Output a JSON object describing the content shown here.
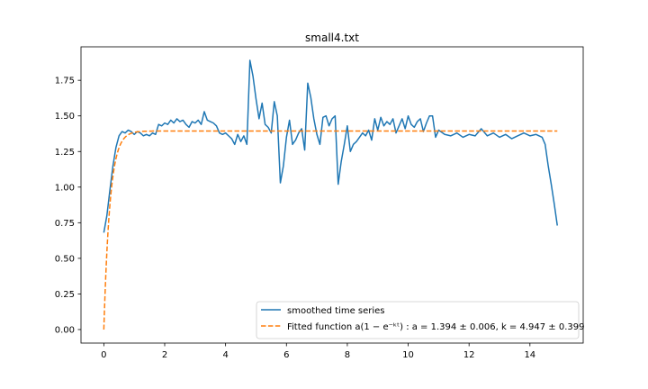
{
  "chart_data": {
    "type": "line",
    "title": "small4.txt",
    "xlabel": "",
    "ylabel": "",
    "xlim": [
      -0.75,
      15.75
    ],
    "ylim": [
      -0.095,
      1.985
    ],
    "x_ticks": [
      0,
      2,
      4,
      6,
      8,
      10,
      12,
      14
    ],
    "y_ticks": [
      0.0,
      0.25,
      0.5,
      0.75,
      1.0,
      1.25,
      1.5,
      1.75
    ],
    "x_tick_labels": [
      "0",
      "2",
      "4",
      "6",
      "8",
      "10",
      "12",
      "14"
    ],
    "y_tick_labels": [
      "0.00",
      "0.25",
      "0.50",
      "0.75",
      "1.00",
      "1.25",
      "1.50",
      "1.75"
    ],
    "grid": false,
    "legend_position": "lower-right",
    "series": [
      {
        "name": "smoothed time series",
        "color": "#1f77b4",
        "style": "solid",
        "x": [
          0.0,
          0.1,
          0.2,
          0.3,
          0.4,
          0.5,
          0.6,
          0.7,
          0.8,
          0.9,
          1.0,
          1.1,
          1.2,
          1.3,
          1.4,
          1.5,
          1.6,
          1.7,
          1.8,
          1.9,
          2.0,
          2.1,
          2.2,
          2.3,
          2.4,
          2.5,
          2.6,
          2.7,
          2.8,
          2.9,
          3.0,
          3.1,
          3.2,
          3.3,
          3.4,
          3.5,
          3.6,
          3.7,
          3.8,
          3.9,
          4.0,
          4.1,
          4.2,
          4.3,
          4.4,
          4.5,
          4.6,
          4.7,
          4.8,
          4.9,
          5.0,
          5.1,
          5.2,
          5.3,
          5.4,
          5.5,
          5.6,
          5.7,
          5.8,
          5.9,
          6.0,
          6.1,
          6.2,
          6.3,
          6.4,
          6.5,
          6.6,
          6.7,
          6.8,
          6.9,
          7.0,
          7.1,
          7.2,
          7.3,
          7.4,
          7.5,
          7.6,
          7.7,
          7.8,
          7.9,
          8.0,
          8.1,
          8.2,
          8.3,
          8.4,
          8.5,
          8.6,
          8.7,
          8.8,
          8.9,
          9.0,
          9.1,
          9.2,
          9.3,
          9.4,
          9.5,
          9.6,
          9.7,
          9.8,
          9.9,
          10.0,
          10.1,
          10.2,
          10.3,
          10.4,
          10.5,
          10.6,
          10.7,
          10.8,
          10.9,
          11.0,
          11.2,
          11.4,
          11.6,
          11.8,
          12.0,
          12.2,
          12.4,
          12.6,
          12.8,
          13.0,
          13.2,
          13.4,
          13.6,
          13.8,
          14.0,
          14.2,
          14.4,
          14.5,
          14.6,
          14.7,
          14.8,
          14.9
        ],
        "y": [
          0.68,
          0.8,
          0.98,
          1.15,
          1.28,
          1.36,
          1.39,
          1.38,
          1.4,
          1.39,
          1.37,
          1.39,
          1.38,
          1.36,
          1.37,
          1.36,
          1.38,
          1.37,
          1.44,
          1.43,
          1.45,
          1.44,
          1.47,
          1.45,
          1.48,
          1.46,
          1.47,
          1.44,
          1.42,
          1.46,
          1.45,
          1.47,
          1.44,
          1.53,
          1.47,
          1.46,
          1.45,
          1.43,
          1.38,
          1.37,
          1.38,
          1.36,
          1.34,
          1.3,
          1.37,
          1.32,
          1.36,
          1.3,
          1.89,
          1.78,
          1.62,
          1.48,
          1.59,
          1.44,
          1.42,
          1.38,
          1.6,
          1.5,
          1.03,
          1.15,
          1.35,
          1.47,
          1.3,
          1.33,
          1.38,
          1.41,
          1.26,
          1.73,
          1.63,
          1.48,
          1.37,
          1.3,
          1.49,
          1.5,
          1.43,
          1.48,
          1.5,
          1.02,
          1.18,
          1.3,
          1.43,
          1.25,
          1.3,
          1.32,
          1.35,
          1.38,
          1.36,
          1.4,
          1.33,
          1.48,
          1.4,
          1.49,
          1.43,
          1.46,
          1.44,
          1.48,
          1.38,
          1.43,
          1.48,
          1.41,
          1.5,
          1.44,
          1.42,
          1.46,
          1.48,
          1.39,
          1.45,
          1.5,
          1.5,
          1.35,
          1.4,
          1.37,
          1.36,
          1.38,
          1.35,
          1.37,
          1.36,
          1.41,
          1.36,
          1.38,
          1.35,
          1.37,
          1.34,
          1.36,
          1.38,
          1.36,
          1.37,
          1.35,
          1.3,
          1.15,
          1.02,
          0.88,
          0.73
        ]
      },
      {
        "name": "Fitted function",
        "color": "#ff7f0e",
        "style": "dashed",
        "model": "a(1-e^{-kt})",
        "a": 1.394,
        "a_err": 0.006,
        "k": 4.947,
        "k_err": 0.399,
        "x_range": [
          0,
          14.9
        ]
      }
    ]
  },
  "legend": {
    "entries": [
      {
        "label": "smoothed time series",
        "color": "#1f77b4",
        "style": "solid"
      },
      {
        "label": "Fitted function a(1 − e⁻ᵏᵗ) : a = 1.394 ± 0.006, k = 4.947 ± 0.399",
        "color": "#ff7f0e",
        "style": "dashed"
      }
    ]
  }
}
